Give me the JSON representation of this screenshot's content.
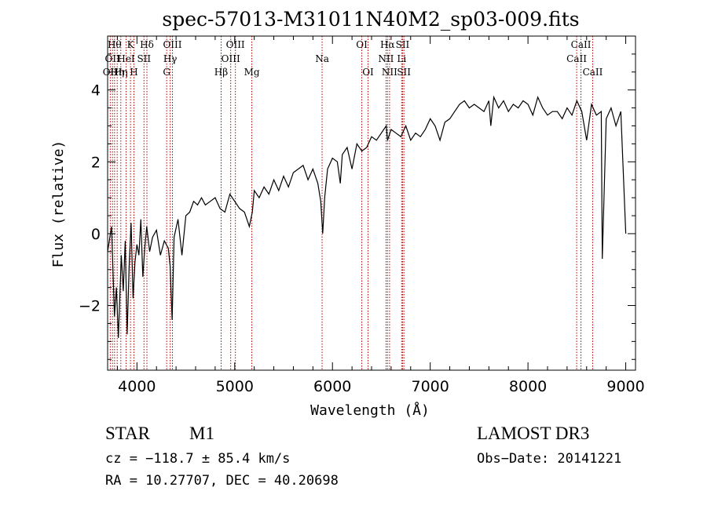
{
  "chart_data": {
    "type": "line",
    "title": "spec-57013-M31011N40M2_sp03-009.fits",
    "xlabel": "Wavelength (Å)",
    "ylabel": "Flux (relative)",
    "xlim": [
      3700,
      9100
    ],
    "ylim": [
      -3.8,
      5.5
    ],
    "xticks": [
      4000,
      5000,
      6000,
      7000,
      8000,
      9000
    ],
    "yticks": [
      -2,
      0,
      2,
      4
    ],
    "series": [
      {
        "name": "flux",
        "x": [
          3700,
          3740,
          3770,
          3790,
          3810,
          3840,
          3860,
          3880,
          3900,
          3920,
          3940,
          3960,
          3980,
          4000,
          4020,
          4040,
          4060,
          4080,
          4100,
          4130,
          4160,
          4200,
          4240,
          4280,
          4320,
          4340,
          4360,
          4380,
          4420,
          4460,
          4500,
          4540,
          4580,
          4620,
          4660,
          4700,
          4750,
          4800,
          4850,
          4900,
          4950,
          5000,
          5050,
          5100,
          5150,
          5180,
          5200,
          5250,
          5300,
          5350,
          5400,
          5450,
          5500,
          5550,
          5600,
          5650,
          5700,
          5750,
          5800,
          5850,
          5880,
          5900,
          5920,
          5950,
          6000,
          6050,
          6080,
          6100,
          6150,
          6200,
          6250,
          6300,
          6350,
          6400,
          6450,
          6500,
          6550,
          6563,
          6600,
          6650,
          6700,
          6750,
          6800,
          6850,
          6900,
          6950,
          7000,
          7050,
          7100,
          7150,
          7200,
          7250,
          7300,
          7350,
          7400,
          7450,
          7500,
          7550,
          7600,
          7620,
          7650,
          7700,
          7750,
          7800,
          7850,
          7900,
          7950,
          8000,
          8050,
          8100,
          8150,
          8200,
          8250,
          8300,
          8350,
          8400,
          8450,
          8500,
          8550,
          8600,
          8650,
          8700,
          8750,
          8760,
          8800,
          8850,
          8900,
          8950,
          9000
        ],
        "y": [
          -0.5,
          0.2,
          -2.3,
          -1.5,
          -2.9,
          -0.6,
          -1.6,
          -0.2,
          -2.8,
          -0.9,
          0.3,
          -1.8,
          -0.8,
          -0.3,
          -0.6,
          0.4,
          -1.2,
          -0.4,
          0.2,
          -0.5,
          -0.1,
          0.1,
          -0.6,
          -0.2,
          -0.4,
          -0.9,
          -2.4,
          -0.1,
          0.4,
          -0.6,
          0.5,
          0.6,
          0.9,
          0.8,
          1.0,
          0.8,
          0.9,
          1.0,
          0.7,
          0.6,
          1.1,
          0.9,
          0.7,
          0.6,
          0.2,
          0.6,
          1.2,
          1.0,
          1.3,
          1.1,
          1.5,
          1.2,
          1.6,
          1.3,
          1.7,
          1.8,
          1.9,
          1.5,
          1.8,
          1.4,
          0.9,
          0.0,
          1.0,
          1.8,
          2.1,
          2.0,
          1.4,
          2.2,
          2.4,
          1.8,
          2.5,
          2.3,
          2.4,
          2.7,
          2.6,
          2.8,
          3.0,
          2.6,
          2.9,
          2.8,
          2.7,
          3.0,
          2.6,
          2.8,
          2.7,
          2.9,
          3.2,
          3.0,
          2.6,
          3.1,
          3.2,
          3.4,
          3.6,
          3.7,
          3.5,
          3.6,
          3.5,
          3.4,
          3.7,
          3.0,
          3.8,
          3.5,
          3.7,
          3.4,
          3.6,
          3.5,
          3.7,
          3.6,
          3.3,
          3.8,
          3.5,
          3.3,
          3.4,
          3.4,
          3.2,
          3.5,
          3.3,
          3.7,
          3.4,
          2.6,
          3.6,
          3.3,
          3.4,
          -0.7,
          3.2,
          3.5,
          3.0,
          3.4,
          0.0
        ]
      }
    ],
    "lines": [
      {
        "wl": 3727,
        "label": "OII",
        "row": 2
      },
      {
        "wl": 3750,
        "label": "OII",
        "row": 1
      },
      {
        "wl": 3771,
        "label": "Hθ",
        "row": 0
      },
      {
        "wl": 3798,
        "label": "Hη",
        "row": 2
      },
      {
        "wl": 3835,
        "label": "Hη",
        "row": 2
      },
      {
        "wl": 3889,
        "label": "HeI",
        "row": 1
      },
      {
        "wl": 3934,
        "label": "K",
        "row": 0
      },
      {
        "wl": 3969,
        "label": "H",
        "row": 2
      },
      {
        "wl": 4072,
        "label": "SII",
        "row": 1
      },
      {
        "wl": 4102,
        "label": "Hδ",
        "row": 0
      },
      {
        "wl": 4304,
        "label": "G",
        "row": 2
      },
      {
        "wl": 4340,
        "label": "Hγ",
        "row": 1
      },
      {
        "wl": 4363,
        "label": "OIII",
        "row": 0
      },
      {
        "wl": 4861,
        "label": "Hβ",
        "row": 2
      },
      {
        "wl": 4959,
        "label": "OIII",
        "row": 1
      },
      {
        "wl": 5007,
        "label": "OIII",
        "row": 0
      },
      {
        "wl": 5175,
        "label": "Mg",
        "row": 2
      },
      {
        "wl": 5894,
        "label": "Na",
        "row": 1
      },
      {
        "wl": 6300,
        "label": "OI",
        "row": 0
      },
      {
        "wl": 6364,
        "label": "OI",
        "row": 2
      },
      {
        "wl": 6548,
        "label": "NII",
        "row": 1
      },
      {
        "wl": 6563,
        "label": "Hα",
        "row": 0
      },
      {
        "wl": 6584,
        "label": "NII",
        "row": 2
      },
      {
        "wl": 6708,
        "label": "Li",
        "row": 1
      },
      {
        "wl": 6717,
        "label": "SII",
        "row": 0
      },
      {
        "wl": 6731,
        "label": "SII",
        "row": 2
      },
      {
        "wl": 8498,
        "label": "CaII",
        "row": 1
      },
      {
        "wl": 8542,
        "label": "CaII",
        "row": 0
      },
      {
        "wl": 8662,
        "label": "CaII",
        "row": 2
      }
    ]
  },
  "info": {
    "class": "STAR",
    "subclass": "M1",
    "survey": "LAMOST DR3",
    "cz": "cz = −118.7 ± 85.4 km/s",
    "obs_date": "Obs−Date: 20141221",
    "coords": "RA =  10.27707, DEC =  40.20698"
  },
  "colors": {
    "line_marker": "#b30000",
    "spectrum": "#000000",
    "axes": "#000000"
  }
}
